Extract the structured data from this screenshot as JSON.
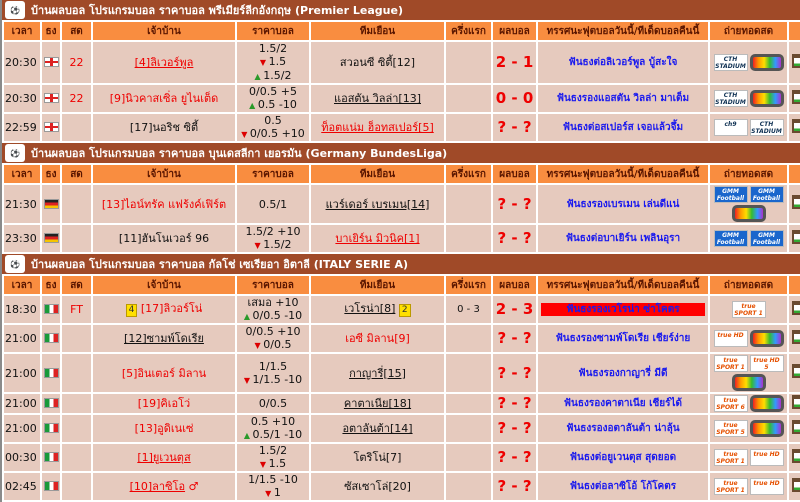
{
  "headers": [
    "เวลา",
    "ธง",
    "สด",
    "เจ้าบ้าน",
    "ราคาบอล",
    "ทีมเยือน",
    "ครึ่งแรก",
    "ผลบอล",
    "ทรรศนะฟุตบอลวันนี้/ทีเด็ดบอลคืนนี้",
    "ถ่ายทอดสด",
    "",
    ""
  ],
  "colors": {
    "league_bar": "#a04a28",
    "header": "#f98d40",
    "row": "#e6cabe",
    "tip": "#1a1aee",
    "score": "#e00000"
  },
  "leagues": [
    {
      "title": "บ้านผลบอล โปรแกรมบอล ราคาบอล พรีเมียร์ลีกอังกฤษ (Premier League)",
      "logo": "premier-league-logo",
      "matches": [
        {
          "time": "20:30",
          "flag": "eng",
          "live": "22",
          "home": {
            "name": "[4]ลิเวอร์พูล",
            "red": true,
            "link": true
          },
          "odds": [
            {
              "t": "1.5/2"
            },
            {
              "a": "down",
              "t": "1.5"
            },
            {
              "a": "up",
              "t": "1.5/2"
            }
          ],
          "away": {
            "name": "สวอนซี ซิตี้[12]",
            "red": false,
            "link": false
          },
          "ht": "",
          "score": "2 - 1",
          "tip": "ฟันธงต่อลิเวอร์พูล บู้สะใจ",
          "tv": [
            "CTH STADIUM 5",
            "tv"
          ]
        },
        {
          "time": "20:30",
          "flag": "eng",
          "live": "22",
          "home": {
            "name": "[9]นิวคาสเซิ่ล ยูไนเต็ด",
            "red": true,
            "link": false
          },
          "odds": [
            {
              "t": "0/0.5 +5"
            },
            {
              "a": "up",
              "t": "0.5 -10"
            }
          ],
          "away": {
            "name": "แอสตัน วิลล่า[13]",
            "red": false,
            "link": true
          },
          "ht": "",
          "score": "0 - 0",
          "tip": "ฟันธงรองแอสตัน วิลล่า มาเต็ม",
          "tv": [
            "CTH STADIUM 11",
            "tv"
          ]
        },
        {
          "time": "22:59",
          "flag": "eng",
          "live": "",
          "home": {
            "name": "[17]นอริช ซิตี้",
            "red": false,
            "link": false
          },
          "odds": [
            {
              "t": "0.5"
            },
            {
              "a": "down",
              "t": "0/0.5 +10"
            }
          ],
          "away": {
            "name": "ท็อตแน่ม ฮ็อทสเปอร์[5]",
            "red": true,
            "link": true
          },
          "ht": "",
          "score": "? - ?",
          "tip": "ฟันธงต่อสเปอร์ส เจอแล้วจึ้ม",
          "tv": [
            "ch9",
            "CTH STADIUM 11"
          ]
        }
      ]
    },
    {
      "title": "บ้านผลบอล โปรแกรมบอล ราคาบอล บุนเดสลีกา เยอรมัน (Germany BundesLiga)",
      "logo": "bundesliga-logo",
      "matches": [
        {
          "time": "21:30",
          "flag": "ger",
          "live": "",
          "home": {
            "name": "[13]ไอน์ทรัค แฟร้งค์เฟิร์ต",
            "red": true,
            "link": false
          },
          "odds": [
            {
              "t": "0.5/1"
            }
          ],
          "away": {
            "name": "แวร์เดอร์ เบรเมน[14]",
            "red": false,
            "link": true
          },
          "ht": "",
          "score": "? - ?",
          "tip": "ฟันธงรองเบรเมน เล่นดีแน่",
          "tv": [
            "GMM Football Max",
            "GMM Football Max HD",
            "tv"
          ]
        },
        {
          "time": "23:30",
          "flag": "ger",
          "live": "",
          "home": {
            "name": "[11]ฮันโนเวอร์ 96",
            "red": false,
            "link": false
          },
          "odds": [
            {
              "t": "1.5/2 +10"
            },
            {
              "a": "down",
              "t": "1.5/2"
            }
          ],
          "away": {
            "name": "บาเยิร์น มิวนิค[1]",
            "red": true,
            "link": true
          },
          "ht": "",
          "score": "? - ?",
          "tip": "ฟันธงต่อบาเยิร์น เพลินอุรา",
          "tv": [
            "GMM Football Max",
            "GMM Football Max HD"
          ]
        }
      ]
    },
    {
      "title": "บ้านผลบอล โปรแกรมบอล ราคาบอล กัลโช่ เซเรียอา อิตาลี (ITALY SERIE A)",
      "logo": "serie-a-logo",
      "matches": [
        {
          "time": "18:30",
          "flag": "it",
          "live": "FT",
          "home": {
            "name": "[17]ลิวอร์โน่",
            "red": true,
            "link": false,
            "card": "4"
          },
          "odds": [
            {
              "t": "เสมอ +10"
            },
            {
              "a": "up",
              "t": "0/0.5 -10"
            }
          ],
          "away": {
            "name": "เวโรน่า[8]",
            "red": false,
            "link": true,
            "card": "2"
          },
          "ht": "0 - 3",
          "score": "2 - 3",
          "tip": "ฟันธงรองเวโรน่า ซ่าโคตร",
          "tip_highlight": true,
          "tv": [
            "true SPORT 1"
          ]
        },
        {
          "time": "21:00",
          "flag": "it",
          "live": "",
          "home": {
            "name": "[12]ซามพ์โดเรีย",
            "red": false,
            "link": true
          },
          "odds": [
            {
              "t": "0/0.5 +10"
            },
            {
              "a": "down",
              "t": "0/0.5"
            }
          ],
          "away": {
            "name": "เอซี มิลาน[9]",
            "red": true,
            "link": false
          },
          "ht": "",
          "score": "? - ?",
          "tip": "ฟันธงรองซามพ์โดเรีย เชียร์ง่าย",
          "tv": [
            "true HD",
            "tv"
          ]
        },
        {
          "time": "21:00",
          "flag": "it",
          "live": "",
          "home": {
            "name": "[5]อินเตอร์ มิลาน",
            "red": true,
            "link": false
          },
          "odds": [
            {
              "t": "1/1.5"
            },
            {
              "a": "down",
              "t": "1/1.5 -10"
            }
          ],
          "away": {
            "name": "กาญารี่[15]",
            "red": false,
            "link": true
          },
          "ht": "",
          "score": "? - ?",
          "tip": "ฟันธงรองกาญารี่ มีดี",
          "tv": [
            "true SPORT 1",
            "true HD 5",
            "tv"
          ]
        },
        {
          "time": "21:00",
          "flag": "it",
          "live": "",
          "home": {
            "name": "[19]คิเอโว่",
            "red": true,
            "link": false
          },
          "odds": [
            {
              "t": "0/0.5"
            }
          ],
          "away": {
            "name": "คาตาเนีย[18]",
            "red": false,
            "link": true
          },
          "ht": "",
          "score": "? - ?",
          "tip": "ฟันธงรองคาตาเนีย เชียร์ได้",
          "tv": [
            "true SPORT 6",
            "tv"
          ]
        },
        {
          "time": "21:00",
          "flag": "it",
          "live": "",
          "home": {
            "name": "[13]อูดิเนเซ่",
            "red": true,
            "link": false
          },
          "odds": [
            {
              "t": "0.5 +10"
            },
            {
              "a": "up",
              "t": "0.5/1 -10"
            }
          ],
          "away": {
            "name": "อตาลันต้า[14]",
            "red": false,
            "link": true
          },
          "ht": "",
          "score": "? - ?",
          "tip": "ฟันธงรองอตาลันต้า น่าลุ้น",
          "tv": [
            "true SPORT 5",
            "tv"
          ]
        },
        {
          "time": "00:30",
          "flag": "it",
          "live": "",
          "home": {
            "name": "[1]ยูเวนตุส",
            "red": true,
            "link": true
          },
          "odds": [
            {
              "t": "1.5/2"
            },
            {
              "a": "down",
              "t": "1.5"
            }
          ],
          "away": {
            "name": "โตริโน่[7]",
            "red": false,
            "link": false
          },
          "ht": "",
          "score": "? - ?",
          "tip": "ฟันธงต่อยูเวนตุส สุดยอด",
          "tv": [
            "true SPORT 1",
            "true HD"
          ]
        },
        {
          "time": "02:45",
          "flag": "it",
          "live": "",
          "home": {
            "name": "[10]ลาซิโอ",
            "red": true,
            "link": true,
            "mark": "♂"
          },
          "odds": [
            {
              "t": "1/1.5 -10"
            },
            {
              "a": "down",
              "t": "1"
            }
          ],
          "away": {
            "name": "ซัสเซาโล่[20]",
            "red": false,
            "link": false
          },
          "ht": "",
          "score": "? - ?",
          "tip": "ฟันธงต่อลาซิโอ้ โก้โคตร",
          "tv": [
            "true SPORT 1",
            "true HD"
          ]
        }
      ]
    }
  ]
}
